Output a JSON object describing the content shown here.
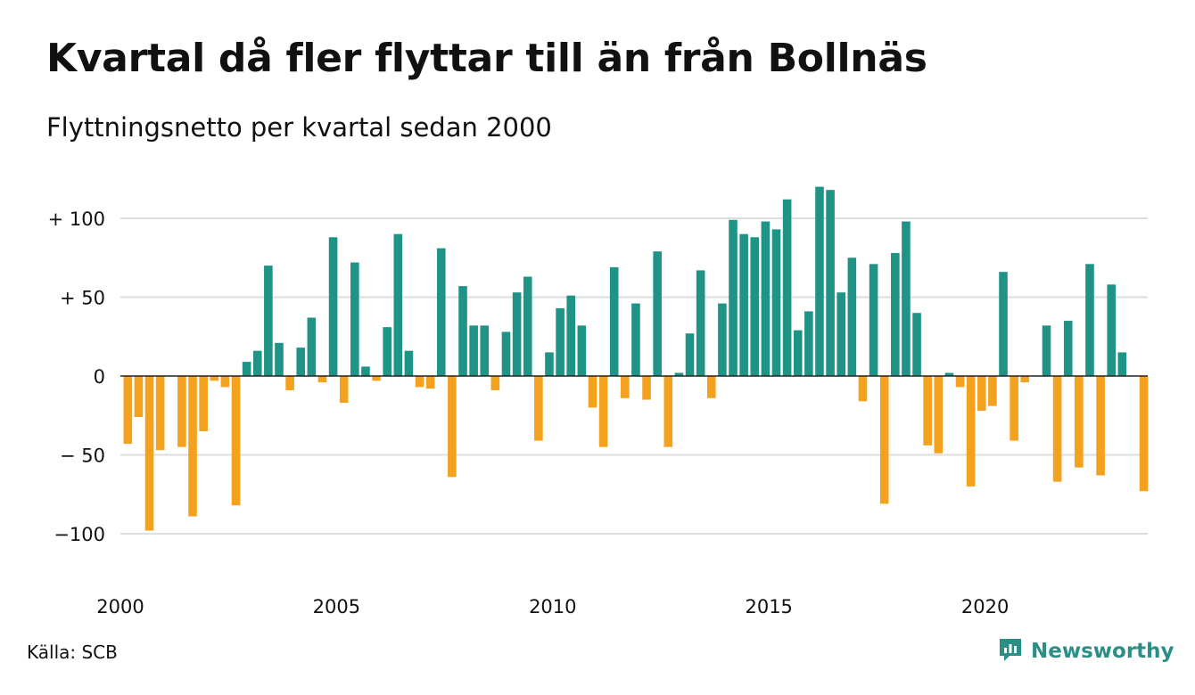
{
  "header": {
    "title": "Kvartal då fler flyttar till än från Bollnäs",
    "subtitle": "Flyttningsnetto per kvartal sedan 2000"
  },
  "footer": {
    "source": "Källa: SCB",
    "brand": "Newsworthy"
  },
  "colors": {
    "positive": "#1f9486",
    "negative": "#f4a11d",
    "gridline": "#dddddd",
    "brand": "#2a8f86"
  },
  "icons": {
    "brand_logo": "newsworthy-logo-icon"
  },
  "chart_data": {
    "type": "bar",
    "title": "Kvartal då fler flyttar till än från Bollnäs",
    "subtitle": "Flyttningsnetto per kvartal sedan 2000",
    "xlabel": "",
    "ylabel": "",
    "ylim": [
      -125,
      125
    ],
    "grid": true,
    "legend": "none",
    "y_ticks": [
      {
        "value": 100,
        "label": "+ 100"
      },
      {
        "value": 50,
        "label": "+  50"
      },
      {
        "value": 0,
        "label": "0"
      },
      {
        "value": -50,
        "label": "− 50"
      },
      {
        "value": -100,
        "label": "−100"
      }
    ],
    "x_ticks": [
      "2000",
      "2005",
      "2010",
      "2015",
      "2020"
    ],
    "start_year": 2000,
    "quarters_per_year": 4,
    "values": [
      -43,
      -26,
      -98,
      -47,
      0,
      -45,
      -89,
      -35,
      -3,
      -7,
      -82,
      9,
      16,
      70,
      21,
      -9,
      18,
      37,
      -4,
      88,
      -17,
      72,
      6,
      -3,
      31,
      90,
      16,
      -7,
      -8,
      81,
      -64,
      57,
      32,
      32,
      -9,
      28,
      53,
      63,
      -41,
      15,
      43,
      51,
      32,
      -20,
      -45,
      69,
      -14,
      46,
      -15,
      79,
      -45,
      2,
      27,
      67,
      -14,
      46,
      99,
      90,
      88,
      98,
      93,
      112,
      29,
      41,
      120,
      118,
      53,
      75,
      -16,
      71,
      -81,
      78,
      98,
      40,
      -44,
      -49,
      2,
      -7,
      -70,
      -22,
      -19,
      66,
      -41,
      -4,
      0,
      32,
      -67,
      35,
      -58,
      71,
      -63,
      58,
      15,
      0,
      -73
    ]
  }
}
